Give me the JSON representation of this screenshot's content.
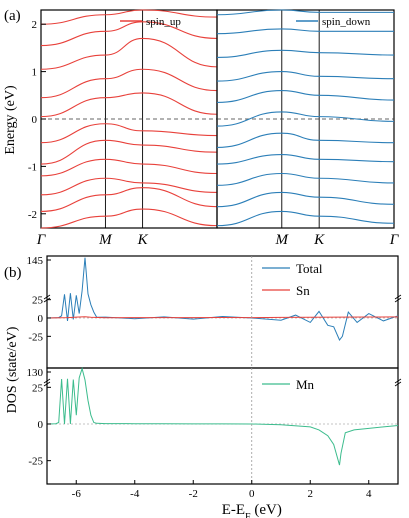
{
  "chart_data": [
    {
      "type": "line",
      "panel_label": "(a)",
      "subplot": "spin_up",
      "ylabel": "Energy (eV)",
      "ylim": [
        -2.3,
        2.3
      ],
      "yticks": [
        "-2",
        "-1",
        "0",
        "1",
        "2"
      ],
      "xticks": [
        "Γ",
        "M",
        "K",
        "Γ"
      ],
      "fermi_level": 0,
      "legend": "spin_up",
      "color": "#e8413b",
      "band_points": [
        0,
        1,
        1.577,
        2.732
      ],
      "bands": [
        [
          -2.3,
          -2.05,
          -1.9,
          -2.25
        ],
        [
          -1.95,
          -1.6,
          -1.45,
          -1.85
        ],
        [
          -1.6,
          -1.25,
          -1.35,
          -1.55
        ],
        [
          -1.2,
          -0.85,
          -0.95,
          -1.15
        ],
        [
          -0.95,
          -0.45,
          -0.55,
          -0.7
        ],
        [
          -0.5,
          -0.1,
          -0.25,
          -0.35
        ],
        [
          0.05,
          0.45,
          0.55,
          0.1
        ],
        [
          0.45,
          0.85,
          1.05,
          0.6
        ],
        [
          1.05,
          1.35,
          1.7,
          1.1
        ],
        [
          1.55,
          1.85,
          2.05,
          1.7
        ],
        [
          2.0,
          2.2,
          2.3,
          2.15
        ]
      ]
    },
    {
      "type": "line",
      "subplot": "spin_down",
      "ylim": [
        -2.3,
        2.3
      ],
      "xticks": [
        "Γ",
        "M",
        "K",
        "Γ"
      ],
      "fermi_level": 0,
      "legend": "spin_down",
      "color": "#2c7fb8",
      "band_points": [
        0,
        1,
        1.577,
        2.732
      ],
      "bands": [
        [
          -2.25,
          -1.95,
          -2.05,
          -2.2
        ],
        [
          -1.85,
          -1.55,
          -1.65,
          -1.8
        ],
        [
          -1.4,
          -1.15,
          -1.25,
          -1.35
        ],
        [
          -0.95,
          -0.75,
          -0.85,
          -0.9
        ],
        [
          -0.6,
          -0.3,
          -0.45,
          -0.5
        ],
        [
          -0.15,
          0.15,
          0.05,
          -0.05
        ],
        [
          0.35,
          0.6,
          0.5,
          0.4
        ],
        [
          0.8,
          1.0,
          0.9,
          0.85
        ],
        [
          1.3,
          1.45,
          1.4,
          1.35
        ],
        [
          1.8,
          1.9,
          1.85,
          1.85
        ],
        [
          2.2,
          2.3,
          2.25,
          2.25
        ]
      ]
    },
    {
      "type": "line",
      "panel_label": "(b)",
      "subplot": "dos_total_sn",
      "ylabel": "DOS (state/eV)",
      "xlim": [
        -7,
        5
      ],
      "yticks_top": [
        "145",
        "25"
      ],
      "yticks": [
        "0",
        "-25"
      ],
      "y_break": true,
      "series": [
        {
          "name": "Total",
          "color": "#2c7fb8",
          "x": [
            -7,
            -6.6,
            -6.5,
            -6.4,
            -6.3,
            -6.2,
            -6.1,
            -6.0,
            -5.9,
            -5.8,
            -5.7,
            -5.6,
            -5.5,
            -5.4,
            -5.3,
            -5.0,
            -4.0,
            -3.0,
            -2.0,
            -1.0,
            0.0,
            1.0,
            1.5,
            2.0,
            2.3,
            2.6,
            2.8,
            3.0,
            3.1,
            3.3,
            3.6,
            4.0,
            4.5,
            5.0
          ],
          "y": [
            0,
            0.5,
            3,
            35,
            -4,
            38,
            -2,
            32,
            6,
            45,
            140,
            36,
            18,
            8,
            1,
            1.2,
            -1,
            1.5,
            -1.5,
            2,
            0,
            -3,
            4,
            -6,
            9,
            -10,
            -12,
            -30,
            -25,
            8,
            -6,
            6,
            -4,
            3
          ]
        },
        {
          "name": "Sn",
          "color": "#e8413b",
          "x": [
            -7,
            -6.3,
            -6.0,
            -5.7,
            -5.5,
            -5.0,
            -4.0,
            -3.0,
            -2.0,
            -1.0,
            0.0,
            1.0,
            2.0,
            3.0,
            4.0,
            5.0
          ],
          "y": [
            0,
            0.6,
            1.2,
            1.8,
            1.0,
            0.4,
            0.5,
            0.6,
            0.6,
            0.7,
            0.6,
            0.8,
            1.0,
            1.2,
            1.4,
            1.5
          ]
        }
      ]
    },
    {
      "type": "line",
      "subplot": "dos_mn",
      "xlabel": "E-E_F (eV)",
      "xlim": [
        -7,
        5
      ],
      "xticks": [
        "-6",
        "-4",
        "-2",
        "0",
        "2",
        "4"
      ],
      "yticks_top": [
        "130",
        "25"
      ],
      "yticks": [
        "0",
        "-25"
      ],
      "y_break": true,
      "series": [
        {
          "name": "Mn",
          "color": "#3cbc8d",
          "x": [
            -7,
            -6.7,
            -6.6,
            -6.5,
            -6.4,
            -6.3,
            -6.2,
            -6.1,
            -6.0,
            -5.9,
            -5.8,
            -5.7,
            -5.6,
            -5.5,
            -5.4,
            -5.3,
            -5.0,
            -4.0,
            -3.0,
            -2.0,
            -1.0,
            0.0,
            1.0,
            2.0,
            2.3,
            2.6,
            2.8,
            3.0,
            3.05,
            3.2,
            3.5,
            4.0,
            4.5,
            5.0
          ],
          "y": [
            0,
            0.2,
            1,
            38,
            0,
            40,
            0,
            34,
            6,
            48,
            125,
            30,
            16,
            6,
            1,
            0.5,
            0.3,
            0.2,
            0.2,
            0.1,
            0.1,
            0,
            -0.5,
            -2,
            -4,
            -8,
            -14,
            -28,
            -20,
            -6,
            -4,
            -3,
            -2,
            -1
          ]
        }
      ]
    }
  ]
}
